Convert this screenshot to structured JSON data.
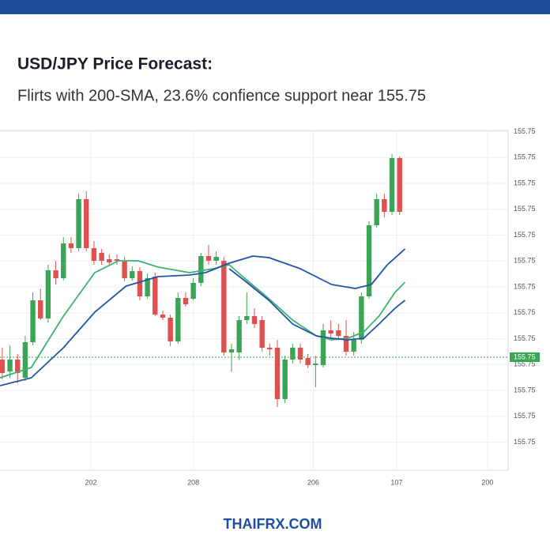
{
  "header": {
    "title": "USD/JPY Price Forecast:",
    "subtitle": "Flirts with 200-SMA, 23.6% confience support near 155.75"
  },
  "footer": {
    "text": "THAIFRX.COM"
  },
  "chart_data": {
    "type": "candlestick",
    "up_color": "#3aa655",
    "down_color": "#e0504f",
    "grid": true,
    "xlim": [
      -0.3,
      66.2
    ],
    "xticks": [
      {
        "value": 11.6,
        "label": "202"
      },
      {
        "value": 25,
        "label": "208"
      },
      {
        "value": 40.7,
        "label": "206"
      },
      {
        "value": 51.6,
        "label": "107"
      },
      {
        "value": 63.5,
        "label": "200"
      }
    ],
    "ylim": [
      155.74536,
      155.75396
    ],
    "yticks": [
      {
        "value": 155.75393,
        "label": "155.75"
      },
      {
        "value": 155.753275,
        "label": "155.75"
      },
      {
        "value": 155.75262,
        "label": "155.75"
      },
      {
        "value": 155.751965,
        "label": "155.75"
      },
      {
        "value": 155.75131,
        "label": "155.75"
      },
      {
        "value": 155.750655,
        "label": "155.75"
      },
      {
        "value": 155.75,
        "label": "155.75"
      },
      {
        "value": 155.749345,
        "label": "155.75"
      },
      {
        "value": 155.74869,
        "label": "155.75"
      },
      {
        "value": 155.748035,
        "label": "155.75"
      },
      {
        "value": 155.74738,
        "label": "155.75"
      },
      {
        "value": 155.746725,
        "label": "155.75"
      },
      {
        "value": 155.74607,
        "label": "155.75"
      }
    ],
    "open": [
      155.74816,
      155.74786,
      155.74816,
      155.7477,
      155.7486,
      155.74966,
      155.7492,
      155.75042,
      155.75022,
      155.7511,
      155.75098,
      155.75222,
      155.75098,
      155.75086,
      155.7507,
      155.7507,
      155.75066,
      155.75022,
      155.7504,
      155.74976,
      155.75026,
      155.7493,
      155.74922,
      155.74862,
      155.74972,
      155.7497,
      155.7501,
      155.75078,
      155.75066,
      155.75066,
      155.74834,
      155.74834,
      155.74916,
      155.74926,
      155.74916,
      155.74846,
      155.74846,
      155.74716,
      155.74816,
      155.74846,
      155.7482,
      155.74802,
      155.74802,
      155.7489,
      155.7489,
      155.74876,
      155.74836,
      155.74866,
      155.74976,
      155.75156,
      155.75222,
      155.7519,
      155.75326
    ],
    "high": [
      155.74846,
      155.74852,
      155.7483,
      155.74876,
      155.74986,
      155.74996,
      155.75056,
      155.75066,
      155.75126,
      155.75126,
      155.75236,
      155.75242,
      155.75116,
      155.75096,
      155.75082,
      155.75082,
      155.75076,
      155.75052,
      155.7505,
      155.75034,
      155.75036,
      155.7494,
      155.7493,
      155.74986,
      155.74986,
      155.75022,
      155.75086,
      155.75106,
      155.7509,
      155.75076,
      155.74856,
      155.74926,
      155.74986,
      155.74946,
      155.74926,
      155.74856,
      155.74866,
      155.74826,
      155.74856,
      155.74856,
      155.7483,
      155.74826,
      155.74906,
      155.74916,
      155.74906,
      155.74916,
      155.74886,
      155.74986,
      155.75166,
      155.75236,
      155.75236,
      155.75336,
      155.7533
    ],
    "low": [
      155.74766,
      155.7477,
      155.74756,
      155.74762,
      155.74852,
      155.74916,
      155.7491,
      155.75006,
      155.75016,
      155.75086,
      155.7509,
      155.7509,
      155.75056,
      155.75056,
      155.75054,
      155.75056,
      155.75014,
      155.75016,
      155.74966,
      155.7497,
      155.74926,
      155.74916,
      155.7485,
      155.74856,
      155.7495,
      155.74966,
      155.75002,
      155.75056,
      155.75056,
      155.74826,
      155.74786,
      155.74816,
      155.74906,
      155.74896,
      155.74836,
      155.74826,
      155.74696,
      155.74706,
      155.74806,
      155.74806,
      155.74794,
      155.74746,
      155.74796,
      155.7487,
      155.74866,
      155.74826,
      155.74826,
      155.74856,
      155.7497,
      155.7515,
      155.75176,
      155.75182,
      155.75182
    ],
    "close": [
      155.74782,
      155.74816,
      155.74782,
      155.7486,
      155.74966,
      155.7492,
      155.75042,
      155.75022,
      155.7511,
      155.75098,
      155.75222,
      155.75098,
      155.75066,
      155.75066,
      155.75062,
      155.75066,
      155.75022,
      155.7504,
      155.74976,
      155.75022,
      155.7493,
      155.74922,
      155.74862,
      155.74972,
      155.74956,
      155.7501,
      155.75078,
      155.75066,
      155.75076,
      155.74834,
      155.74842,
      155.74916,
      155.74926,
      155.74906,
      155.74846,
      155.74842,
      155.74716,
      155.74816,
      155.74846,
      155.74816,
      155.74802,
      155.74806,
      155.7489,
      155.74882,
      155.74876,
      155.74836,
      155.74866,
      155.74976,
      155.75156,
      155.75222,
      155.7519,
      155.75326,
      155.7519
    ],
    "lines": [
      {
        "color": "#3cb371",
        "x": [
          -0.3,
          3.8,
          8.0,
          12.1,
          15.2,
          17.8,
          20.4,
          24.5,
          27.6,
          29.7,
          31.7,
          34.9,
          38.0,
          41.1,
          43.1,
          45.2,
          47.3,
          49.3,
          51.4,
          52.7
        ],
        "values": [
          155.7477,
          155.74796,
          155.74926,
          155.75036,
          155.75066,
          155.75066,
          155.7505,
          155.75036,
          155.75046,
          155.75056,
          155.75022,
          155.7497,
          155.74916,
          155.74876,
          155.74866,
          155.7487,
          155.74886,
          155.74926,
          155.74986,
          155.75012
        ]
      },
      {
        "color": "#2255a8",
        "x": [
          -0.3,
          3.8,
          8.0,
          12.1,
          16.2,
          20.4,
          24.5,
          26.6,
          29.7,
          32.8,
          34.9,
          39.0,
          43.1,
          46.2,
          48.3,
          50.4,
          52.7
        ],
        "values": [
          155.7475,
          155.7477,
          155.74846,
          155.74936,
          155.75002,
          155.75026,
          155.7503,
          155.75036,
          155.7506,
          155.75078,
          155.75074,
          155.75046,
          155.75006,
          155.74996,
          155.75006,
          155.75056,
          155.75096
        ]
      },
      {
        "color": "#2255a8",
        "x": [
          29.7,
          31.7,
          34.9,
          38.0,
          41.1,
          43.1,
          45.2,
          47.3,
          49.3,
          51.4,
          52.7
        ],
        "values": [
          155.75046,
          155.75016,
          155.74966,
          155.74906,
          155.74876,
          155.7487,
          155.74866,
          155.7487,
          155.74906,
          155.74946,
          155.74966
        ]
      }
    ],
    "last_price": {
      "value": 155.74822,
      "label": "155.75",
      "color": "#3aa655"
    }
  }
}
